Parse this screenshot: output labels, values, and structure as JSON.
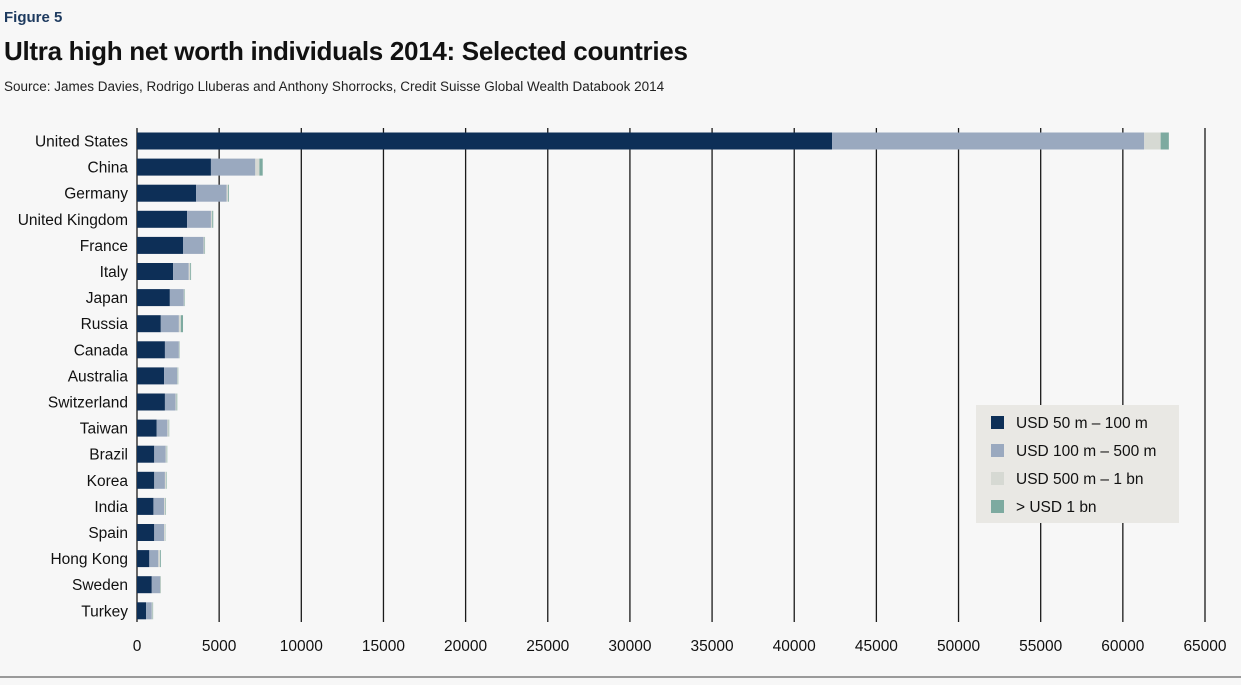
{
  "figure_label": "Figure 5",
  "title": "Ultra high net worth individuals 2014: Selected countries",
  "source": "Source: James Davies, Rodrigo Lluberas and Anthony Shorrocks, Credit Suisse Global Wealth Databook 2014",
  "chart_data": {
    "type": "bar",
    "orientation": "horizontal",
    "stacked": true,
    "categories": [
      "United States",
      "China",
      "Germany",
      "United Kingdom",
      "France",
      "Italy",
      "Japan",
      "Russia",
      "Canada",
      "Australia",
      "Switzerland",
      "Taiwan",
      "Brazil",
      "Korea",
      "India",
      "Spain",
      "Hong Kong",
      "Sweden",
      "Turkey"
    ],
    "series": [
      {
        "name": "USD 50 m – 100 m",
        "color": "#0d2f57",
        "values": [
          42300,
          4500,
          3600,
          3050,
          2800,
          2200,
          2000,
          1450,
          1700,
          1650,
          1700,
          1200,
          1050,
          1050,
          1000,
          1050,
          750,
          900,
          550
        ]
      },
      {
        "name": "USD 100 m – 500 m",
        "color": "#9aa9bf",
        "values": [
          19000,
          2700,
          1850,
          1450,
          1250,
          950,
          850,
          1100,
          850,
          800,
          650,
          650,
          700,
          650,
          650,
          600,
          550,
          500,
          350
        ]
      },
      {
        "name": "USD 500 m – 1 bn",
        "color": "#d6d9d3",
        "values": [
          1000,
          250,
          100,
          80,
          60,
          90,
          30,
          120,
          30,
          30,
          60,
          80,
          60,
          80,
          80,
          60,
          100,
          40,
          50
        ]
      },
      {
        "name": "> USD 1 bn",
        "color": "#7daaa0",
        "values": [
          500,
          200,
          50,
          60,
          30,
          50,
          30,
          130,
          20,
          30,
          40,
          30,
          30,
          30,
          30,
          20,
          50,
          20,
          30
        ]
      }
    ],
    "xlim": [
      0,
      65000
    ],
    "xticks": [
      0,
      5000,
      10000,
      15000,
      20000,
      25000,
      30000,
      35000,
      40000,
      45000,
      50000,
      55000,
      60000,
      65000
    ],
    "xtick_labels": [
      "0",
      "5000",
      "10000",
      "15000",
      "20000",
      "25000",
      "30000",
      "35000",
      "40000",
      "45000",
      "50000",
      "55000",
      "60000",
      "65000"
    ],
    "grid": "vertical",
    "legend_position": "lower-right"
  }
}
